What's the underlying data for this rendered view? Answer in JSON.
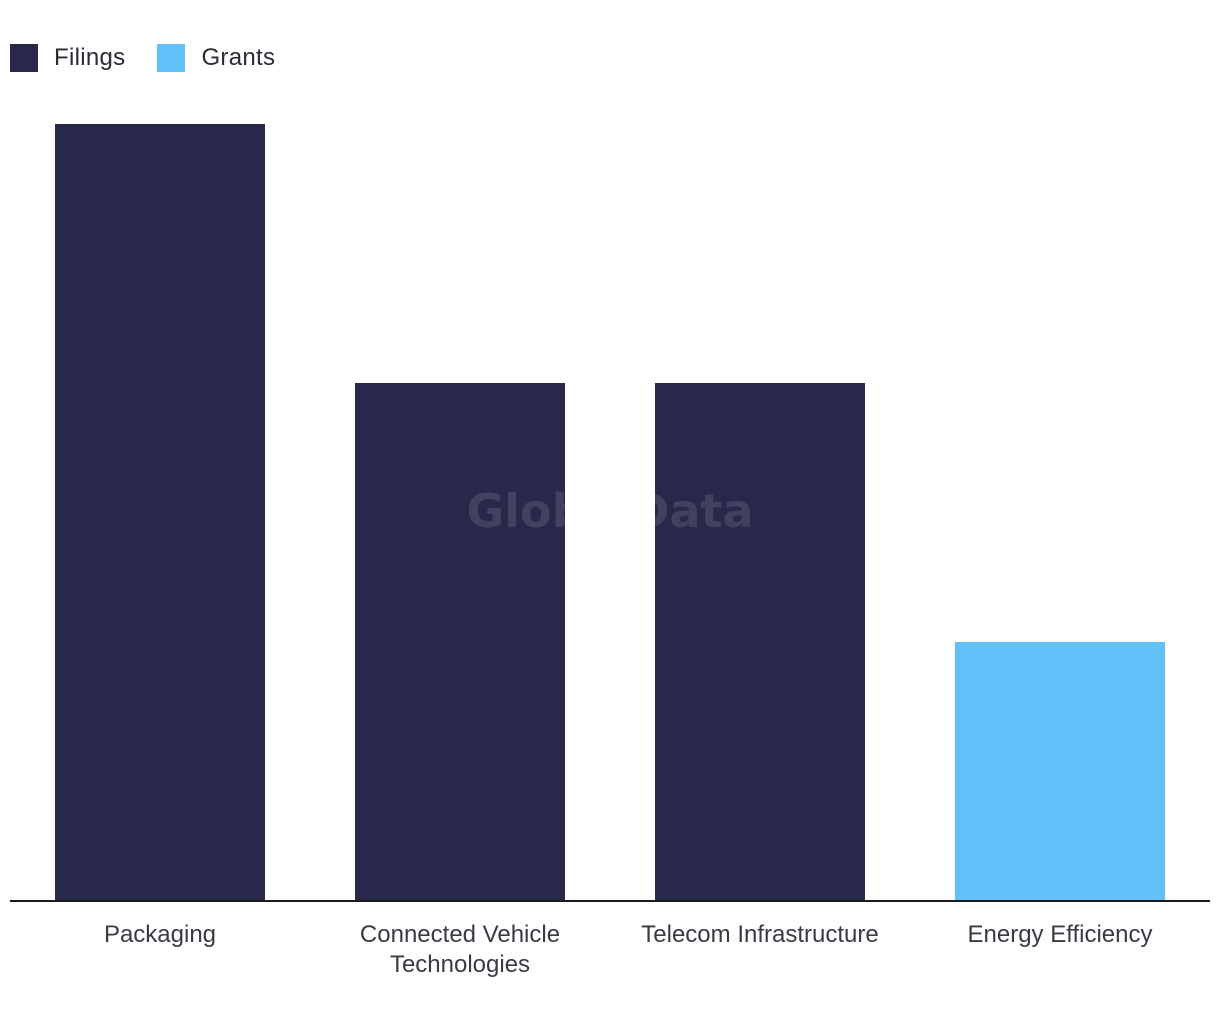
{
  "legend": {
    "items": [
      {
        "label": "Filings",
        "color": "#27284a"
      },
      {
        "label": "Grants",
        "color": "#62c1f8"
      }
    ]
  },
  "watermark": "GlobalData",
  "chart_data": {
    "type": "bar",
    "categories": [
      [
        "Packaging"
      ],
      [
        "Connected Vehicle",
        "Technologies"
      ],
      [
        "Telecom Infrastructure"
      ],
      [
        "Energy Efficiency"
      ]
    ],
    "series": [
      {
        "name": "Filings",
        "values": [
          3,
          2,
          2,
          null
        ],
        "color": "#27284a"
      },
      {
        "name": "Grants",
        "values": [
          null,
          null,
          null,
          1
        ],
        "color": "#62c1f8"
      }
    ],
    "ylim": [
      0,
      3
    ],
    "grid": false,
    "legend_position": "top-left"
  }
}
